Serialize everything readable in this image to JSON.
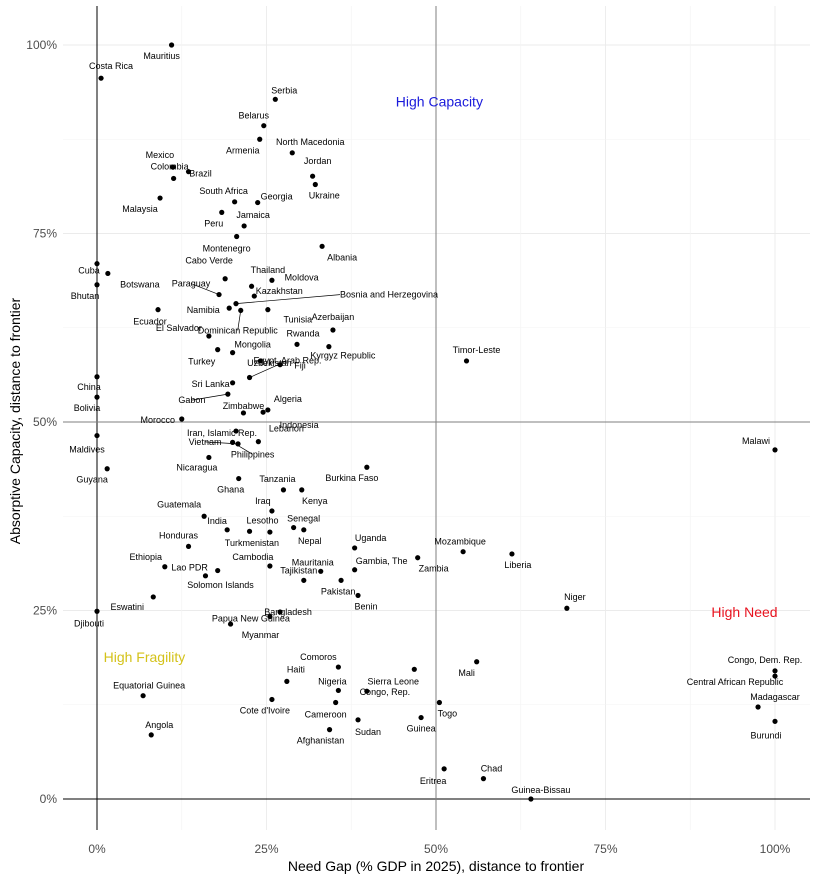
{
  "chart_data": {
    "type": "scatter",
    "xlabel": "Need Gap (% GDP in 2025), distance to frontier",
    "ylabel": "Absorptive Capacity, distance to frontier",
    "xlim": [
      -0.05,
      1.05
    ],
    "ylim": [
      -0.05,
      1.02
    ],
    "x_ticks": [
      0,
      0.25,
      0.5,
      0.75,
      1.0
    ],
    "x_tick_labels": [
      "0%",
      "25%",
      "50%",
      "75%",
      "100%"
    ],
    "y_ticks": [
      0,
      0.25,
      0.5,
      0.75,
      1.0
    ],
    "y_tick_labels": [
      "0%",
      "25%",
      "50%",
      "75%",
      "100%"
    ],
    "reference_lines": {
      "x": 0.5,
      "y": 0.5
    },
    "grid": true,
    "quadrant_labels": [
      {
        "text": "High Capacity",
        "x": 0.505,
        "y": 0.925,
        "color": "#1a1adb"
      },
      {
        "text": "High Need",
        "x": 0.955,
        "y": 0.248,
        "color": "#e8131f"
      },
      {
        "text": "High Fragility",
        "x": 0.07,
        "y": 0.188,
        "color": "#d4c21a"
      }
    ],
    "points": [
      {
        "name": "Mauritius",
        "x": 0.11,
        "y": 1.0
      },
      {
        "name": "Costa Rica",
        "x": 0.006,
        "y": 0.956
      },
      {
        "name": "Serbia",
        "x": 0.263,
        "y": 0.928
      },
      {
        "name": "Belarus",
        "x": 0.246,
        "y": 0.893
      },
      {
        "name": "Armenia",
        "x": 0.24,
        "y": 0.875
      },
      {
        "name": "North Macedonia",
        "x": 0.288,
        "y": 0.857
      },
      {
        "name": "Jordan",
        "x": 0.318,
        "y": 0.826
      },
      {
        "name": "Ukraine",
        "x": 0.322,
        "y": 0.815
      },
      {
        "name": "Mexico",
        "x": 0.112,
        "y": 0.838
      },
      {
        "name": "Brazil",
        "x": 0.135,
        "y": 0.832
      },
      {
        "name": "Colombia",
        "x": 0.113,
        "y": 0.823
      },
      {
        "name": "Malaysia",
        "x": 0.093,
        "y": 0.797
      },
      {
        "name": "South Africa",
        "x": 0.203,
        "y": 0.792
      },
      {
        "name": "Georgia",
        "x": 0.237,
        "y": 0.791
      },
      {
        "name": "Peru",
        "x": 0.184,
        "y": 0.778
      },
      {
        "name": "Jamaica",
        "x": 0.217,
        "y": 0.76
      },
      {
        "name": "Montenegro",
        "x": 0.206,
        "y": 0.746
      },
      {
        "name": "Albania",
        "x": 0.332,
        "y": 0.733
      },
      {
        "name": "Cuba",
        "x": 0.0,
        "y": 0.71
      },
      {
        "name": "Botswana",
        "x": 0.016,
        "y": 0.697
      },
      {
        "name": "Bhutan",
        "x": 0.0,
        "y": 0.682
      },
      {
        "name": "Cabo Verde",
        "x": 0.189,
        "y": 0.69
      },
      {
        "name": "Thailand",
        "x": 0.258,
        "y": 0.688
      },
      {
        "name": "Moldova",
        "x": 0.228,
        "y": 0.68
      },
      {
        "name": "Paraguay",
        "x": 0.18,
        "y": 0.669
      },
      {
        "name": "Kazakhstan",
        "x": 0.232,
        "y": 0.667
      },
      {
        "name": "Bosnia and Herzegovina",
        "x": 0.205,
        "y": 0.657
      },
      {
        "name": "Namibia",
        "x": 0.195,
        "y": 0.651
      },
      {
        "name": "Tunisia",
        "x": 0.252,
        "y": 0.649
      },
      {
        "name": "Ecuador",
        "x": 0.09,
        "y": 0.649
      },
      {
        "name": "Dominican Republic",
        "x": 0.212,
        "y": 0.648
      },
      {
        "name": "Azerbaijan",
        "x": 0.348,
        "y": 0.622
      },
      {
        "name": "Rwanda",
        "x": 0.295,
        "y": 0.603
      },
      {
        "name": "El Salvador",
        "x": 0.165,
        "y": 0.614
      },
      {
        "name": "Mongolia",
        "x": 0.2,
        "y": 0.592
      },
      {
        "name": "Kyrgyz Republic",
        "x": 0.342,
        "y": 0.6
      },
      {
        "name": "Timor-Leste",
        "x": 0.545,
        "y": 0.581
      },
      {
        "name": "Turkey",
        "x": 0.178,
        "y": 0.596
      },
      {
        "name": "Uzbekistan",
        "x": 0.241,
        "y": 0.581
      },
      {
        "name": "Fiji",
        "x": 0.27,
        "y": 0.576
      },
      {
        "name": "Sri Lanka",
        "x": 0.2,
        "y": 0.552
      },
      {
        "name": "Egypt, Arab Rep.",
        "x": 0.225,
        "y": 0.559
      },
      {
        "name": "China",
        "x": 0.0,
        "y": 0.56
      },
      {
        "name": "Bolivia",
        "x": 0.0,
        "y": 0.533
      },
      {
        "name": "Gabon",
        "x": 0.193,
        "y": 0.537
      },
      {
        "name": "Zimbabwe",
        "x": 0.216,
        "y": 0.512
      },
      {
        "name": "Algeria",
        "x": 0.252,
        "y": 0.516
      },
      {
        "name": "Indonesia",
        "x": 0.245,
        "y": 0.513
      },
      {
        "name": "Morocco",
        "x": 0.125,
        "y": 0.504
      },
      {
        "name": "Iran, Islamic Rep.",
        "x": 0.205,
        "y": 0.488
      },
      {
        "name": "Maldives",
        "x": 0.0,
        "y": 0.482
      },
      {
        "name": "Vietnam",
        "x": 0.208,
        "y": 0.471
      },
      {
        "name": "Lebanon",
        "x": 0.238,
        "y": 0.474
      },
      {
        "name": "Philippines",
        "x": 0.2,
        "y": 0.473
      },
      {
        "name": "Malawi",
        "x": 1.0,
        "y": 0.463
      },
      {
        "name": "Nicaragua",
        "x": 0.165,
        "y": 0.453
      },
      {
        "name": "Guyana",
        "x": 0.015,
        "y": 0.438
      },
      {
        "name": "Burkina Faso",
        "x": 0.398,
        "y": 0.44
      },
      {
        "name": "Ghana",
        "x": 0.209,
        "y": 0.425
      },
      {
        "name": "Tanzania",
        "x": 0.275,
        "y": 0.41
      },
      {
        "name": "Kenya",
        "x": 0.302,
        "y": 0.41
      },
      {
        "name": "Guatemala",
        "x": 0.158,
        "y": 0.375
      },
      {
        "name": "Iraq",
        "x": 0.258,
        "y": 0.382
      },
      {
        "name": "India",
        "x": 0.192,
        "y": 0.357
      },
      {
        "name": "Lesotho",
        "x": 0.225,
        "y": 0.355
      },
      {
        "name": "Senegal",
        "x": 0.29,
        "y": 0.36
      },
      {
        "name": "Turkmenistan",
        "x": 0.255,
        "y": 0.354
      },
      {
        "name": "Nepal",
        "x": 0.305,
        "y": 0.357
      },
      {
        "name": "Honduras",
        "x": 0.135,
        "y": 0.335
      },
      {
        "name": "Uganda",
        "x": 0.38,
        "y": 0.333
      },
      {
        "name": "Mozambique",
        "x": 0.54,
        "y": 0.328
      },
      {
        "name": "Liberia",
        "x": 0.612,
        "y": 0.325
      },
      {
        "name": "Zambia",
        "x": 0.473,
        "y": 0.32
      },
      {
        "name": "Ethiopia",
        "x": 0.1,
        "y": 0.308
      },
      {
        "name": "Cambodia",
        "x": 0.255,
        "y": 0.309
      },
      {
        "name": "Gambia, The",
        "x": 0.38,
        "y": 0.304
      },
      {
        "name": "Mauritania",
        "x": 0.33,
        "y": 0.302
      },
      {
        "name": "Lao PDR",
        "x": 0.178,
        "y": 0.303
      },
      {
        "name": "Solomon Islands",
        "x": 0.16,
        "y": 0.296
      },
      {
        "name": "Tajikistan",
        "x": 0.305,
        "y": 0.29
      },
      {
        "name": "Pakistan",
        "x": 0.36,
        "y": 0.29
      },
      {
        "name": "Eswatini",
        "x": 0.083,
        "y": 0.268
      },
      {
        "name": "Benin",
        "x": 0.385,
        "y": 0.27
      },
      {
        "name": "Niger",
        "x": 0.693,
        "y": 0.253
      },
      {
        "name": "Djibouti",
        "x": 0.0,
        "y": 0.249
      },
      {
        "name": "Bangladesh",
        "x": 0.27,
        "y": 0.248
      },
      {
        "name": "Papua New Guinea",
        "x": 0.255,
        "y": 0.242
      },
      {
        "name": "Myanmar",
        "x": 0.197,
        "y": 0.232
      },
      {
        "name": "Comoros",
        "x": 0.356,
        "y": 0.175
      },
      {
        "name": "Mali",
        "x": 0.56,
        "y": 0.182
      },
      {
        "name": "Sierra Leone",
        "x": 0.468,
        "y": 0.172
      },
      {
        "name": "Haiti",
        "x": 0.28,
        "y": 0.156
      },
      {
        "name": "Nigeria",
        "x": 0.356,
        "y": 0.144
      },
      {
        "name": "Congo, Dem. Rep.",
        "x": 1.0,
        "y": 0.17
      },
      {
        "name": "Central African Republic",
        "x": 1.0,
        "y": 0.163
      },
      {
        "name": "Equatorial Guinea",
        "x": 0.068,
        "y": 0.137
      },
      {
        "name": "Congo, Rep.",
        "x": 0.398,
        "y": 0.143
      },
      {
        "name": "Cote d'Ivoire",
        "x": 0.258,
        "y": 0.132
      },
      {
        "name": "Cameroon",
        "x": 0.352,
        "y": 0.128
      },
      {
        "name": "Togo",
        "x": 0.505,
        "y": 0.128
      },
      {
        "name": "Madagascar",
        "x": 0.975,
        "y": 0.122
      },
      {
        "name": "Sudan",
        "x": 0.385,
        "y": 0.105
      },
      {
        "name": "Guinea",
        "x": 0.478,
        "y": 0.108
      },
      {
        "name": "Burundi",
        "x": 1.0,
        "y": 0.103
      },
      {
        "name": "Afghanistan",
        "x": 0.343,
        "y": 0.092
      },
      {
        "name": "Angola",
        "x": 0.08,
        "y": 0.085
      },
      {
        "name": "Eritrea",
        "x": 0.512,
        "y": 0.04
      },
      {
        "name": "Chad",
        "x": 0.57,
        "y": 0.027
      },
      {
        "name": "Guinea-Bissau",
        "x": 0.64,
        "y": 0.0
      }
    ]
  }
}
